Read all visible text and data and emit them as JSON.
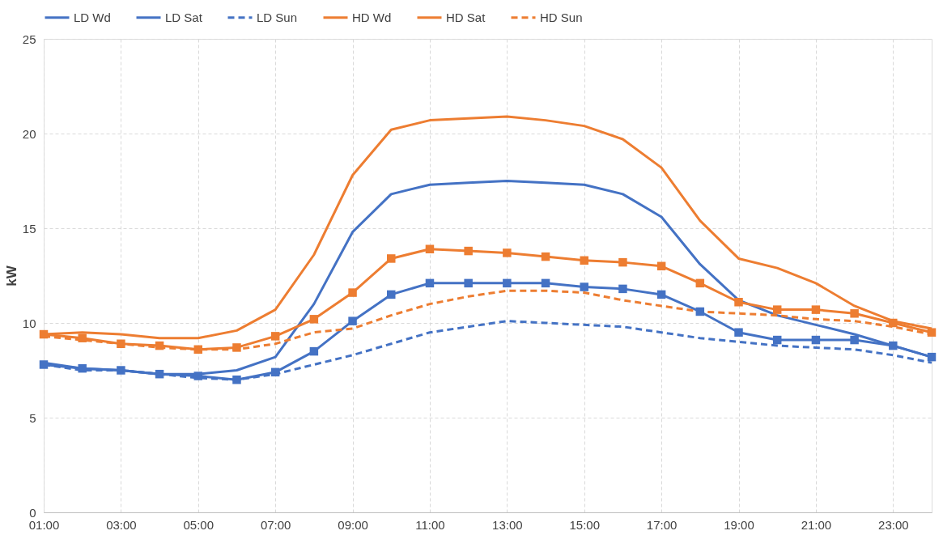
{
  "chart_data": {
    "type": "line",
    "ylabel": "kW",
    "categories": [
      "01:00",
      null,
      "03:00",
      null,
      "05:00",
      null,
      "07:00",
      null,
      "09:00",
      null,
      "11:00",
      null,
      "13:00",
      null,
      "15:00",
      null,
      "17:00",
      null,
      "19:00",
      null,
      "21:00",
      null,
      "23:00",
      null
    ],
    "ylim": [
      0,
      25
    ],
    "yticks": [
      0,
      5,
      10,
      15,
      20,
      25
    ],
    "grid": true,
    "legend": "top",
    "series": [
      {
        "name": "LD Wd",
        "color": "#4472c4",
        "line_style": "solid",
        "marker": "none",
        "values": [
          7.9,
          7.6,
          7.5,
          7.3,
          7.3,
          7.5,
          8.2,
          11.0,
          14.8,
          16.8,
          17.3,
          17.4,
          17.5,
          17.4,
          17.3,
          16.8,
          15.6,
          13.1,
          11.2,
          10.4,
          9.9,
          9.4,
          8.8,
          8.2
        ]
      },
      {
        "name": "LD Sat",
        "color": "#4472c4",
        "line_style": "solid",
        "marker": "square",
        "values": [
          7.8,
          7.6,
          7.5,
          7.3,
          7.2,
          7.0,
          7.4,
          8.5,
          10.1,
          11.5,
          12.1,
          12.1,
          12.1,
          12.1,
          11.9,
          11.8,
          11.5,
          10.6,
          9.5,
          9.1,
          9.1,
          9.1,
          8.8,
          8.2
        ]
      },
      {
        "name": "LD Sun",
        "color": "#4472c4",
        "line_style": "dashed",
        "marker": "none",
        "values": [
          7.8,
          7.5,
          7.5,
          7.3,
          7.1,
          7.0,
          7.3,
          7.8,
          8.3,
          8.9,
          9.5,
          9.8,
          10.1,
          10.0,
          9.9,
          9.8,
          9.5,
          9.2,
          9.0,
          8.8,
          8.7,
          8.6,
          8.3,
          7.9
        ]
      },
      {
        "name": "HD Wd",
        "color": "#ed7d31",
        "line_style": "solid",
        "marker": "none",
        "values": [
          9.4,
          9.5,
          9.4,
          9.2,
          9.2,
          9.6,
          10.7,
          13.6,
          17.8,
          20.2,
          20.7,
          20.8,
          20.9,
          20.7,
          20.4,
          19.7,
          18.2,
          15.4,
          13.4,
          12.9,
          12.1,
          10.9,
          10.1,
          9.7
        ]
      },
      {
        "name": "HD Sat",
        "color": "#ed7d31",
        "line_style": "solid",
        "marker": "square",
        "values": [
          9.4,
          9.2,
          8.9,
          8.8,
          8.6,
          8.7,
          9.3,
          10.2,
          11.6,
          13.4,
          13.9,
          13.8,
          13.7,
          13.5,
          13.3,
          13.2,
          13.0,
          12.1,
          11.1,
          10.7,
          10.7,
          10.5,
          10.0,
          9.5
        ]
      },
      {
        "name": "HD Sun",
        "color": "#ed7d31",
        "line_style": "dashed",
        "marker": "none",
        "values": [
          9.3,
          9.1,
          8.9,
          8.7,
          8.6,
          8.6,
          8.9,
          9.5,
          9.7,
          10.4,
          11.0,
          11.4,
          11.7,
          11.7,
          11.6,
          11.2,
          10.9,
          10.6,
          10.5,
          10.4,
          10.2,
          10.1,
          9.8,
          9.4
        ]
      }
    ]
  }
}
